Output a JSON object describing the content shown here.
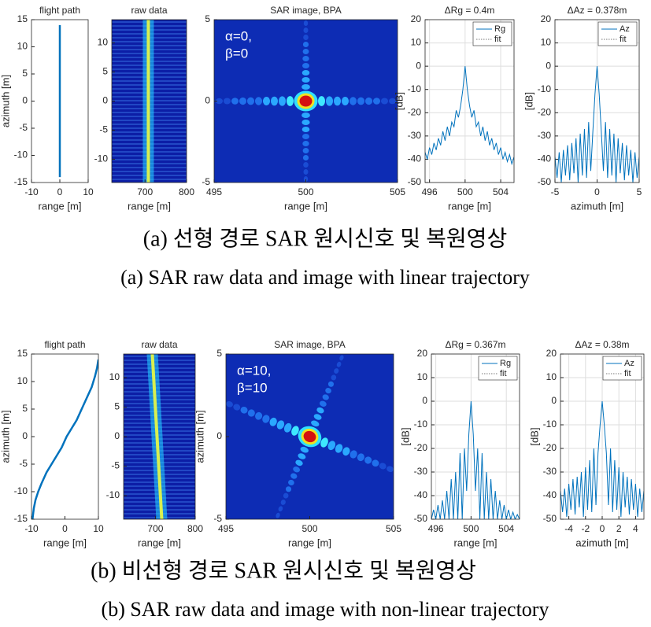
{
  "chart_data": [
    {
      "type": "line",
      "title": "flight path",
      "xlabel": "range [m]",
      "ylabel": "azimuth [m]",
      "xlim": [
        -10,
        10
      ],
      "xticks": [
        -10,
        0,
        10
      ],
      "ylim": [
        -15,
        15
      ],
      "yticks": [
        -15,
        -10,
        -5,
        0,
        5,
        10,
        15
      ],
      "x": [
        0,
        0
      ],
      "series": [
        {
          "color": "#0072bd",
          "values": [
            -14,
            14
          ]
        }
      ]
    },
    {
      "type": "heatmap",
      "title": "raw data",
      "xlabel": "range [m]",
      "xlim": [
        620,
        800
      ],
      "xticks": [
        700,
        800
      ],
      "ylim": [
        -14,
        14
      ],
      "yticks": [
        -10,
        -5,
        0,
        5,
        10
      ]
    },
    {
      "type": "image",
      "title": "SAR image, BPA",
      "xlabel": "range [m]",
      "annotation": [
        "α=0,",
        "β=0"
      ],
      "xlim": [
        495,
        505
      ],
      "xticks": [
        495,
        500,
        505
      ],
      "ylim": [
        -5,
        5
      ],
      "yticks": [
        -5,
        0,
        5
      ]
    },
    {
      "type": "line",
      "title": "ΔRg = 0.4m",
      "xlabel": "range [m]",
      "ylabel": "[dB]",
      "grid": true,
      "xlim": [
        495.5,
        505.5
      ],
      "xticks": [
        496,
        500,
        504
      ],
      "ylim": [
        -50,
        20
      ],
      "yticks": [
        -50,
        -40,
        -30,
        -20,
        -10,
        0,
        10,
        20
      ],
      "legend": [
        {
          "label": "Rg",
          "style": "solid"
        },
        {
          "label": "fit",
          "style": "dotted"
        }
      ],
      "x": [
        495.5,
        495.75,
        496,
        496.25,
        496.5,
        496.75,
        497,
        497.25,
        497.5,
        497.75,
        498,
        498.25,
        498.5,
        498.75,
        499,
        499.25,
        499.5,
        499.75,
        500,
        500.25,
        500.5,
        500.75,
        501,
        501.25,
        501.5,
        501.75,
        502,
        502.25,
        502.5,
        502.75,
        503,
        503.25,
        503.5,
        503.75,
        504,
        504.25,
        504.5,
        504.75,
        505,
        505.25,
        505.5
      ],
      "series": [
        {
          "name": "Rg",
          "color": "#0072bd",
          "values": [
            -37,
            -40,
            -35,
            -38,
            -33,
            -36,
            -31,
            -34,
            -28,
            -32,
            -26,
            -30,
            -24,
            -26,
            -19,
            -22,
            -17,
            -10,
            0,
            -10,
            -17,
            -22,
            -19,
            -26,
            -24,
            -30,
            -26,
            -32,
            -28,
            -34,
            -31,
            -36,
            -33,
            -38,
            -35,
            -40,
            -37,
            -41,
            -38,
            -42,
            -39
          ]
        }
      ]
    },
    {
      "type": "line",
      "title": "ΔAz = 0.378m",
      "xlabel": "azimuth [m]",
      "ylabel": "[dB]",
      "grid": true,
      "xlim": [
        -5,
        5
      ],
      "xticks": [
        -5,
        0,
        5
      ],
      "ylim": [
        -50,
        20
      ],
      "yticks": [
        -50,
        -40,
        -30,
        -20,
        -10,
        0,
        10,
        20
      ],
      "legend": [
        {
          "label": "Az",
          "style": "solid"
        },
        {
          "label": "fit",
          "style": "dotted"
        }
      ],
      "x": [
        -5,
        -4.75,
        -4.5,
        -4.25,
        -4,
        -3.75,
        -3.5,
        -3.25,
        -3,
        -2.75,
        -2.5,
        -2.25,
        -2,
        -1.75,
        -1.5,
        -1.25,
        -1,
        -0.75,
        -0.5,
        -0.25,
        0,
        0.25,
        0.5,
        0.75,
        1,
        1.25,
        1.5,
        1.75,
        2,
        2.25,
        2.5,
        2.75,
        3,
        3.25,
        3.5,
        3.75,
        4,
        4.25,
        4.5,
        4.75,
        5
      ],
      "series": [
        {
          "name": "Az",
          "color": "#0072bd",
          "values": [
            -39,
            -48,
            -37,
            -50,
            -36,
            -47,
            -34,
            -49,
            -33,
            -46,
            -31,
            -50,
            -29,
            -47,
            -27,
            -48,
            -24,
            -45,
            -28,
            -12,
            0,
            -12,
            -28,
            -45,
            -24,
            -48,
            -27,
            -47,
            -29,
            -50,
            -31,
            -46,
            -33,
            -49,
            -34,
            -47,
            -36,
            -50,
            -37,
            -48,
            -39
          ]
        }
      ]
    },
    {
      "type": "line",
      "title": "flight path",
      "xlabel": "range [m]",
      "ylabel": "azimuth [m]",
      "xlim": [
        -10,
        10
      ],
      "xticks": [
        -10,
        0,
        10
      ],
      "ylim": [
        -15,
        15
      ],
      "yticks": [
        -15,
        -10,
        -5,
        0,
        5,
        10,
        15
      ],
      "x": [
        -9.7,
        -9.3,
        -8.8,
        -8,
        -7,
        -5.5,
        -4,
        -2.5,
        -1,
        0.5,
        2,
        3.5,
        5,
        6.5,
        8,
        9,
        9.6,
        10
      ],
      "series": [
        {
          "color": "#0072bd",
          "values": [
            -15,
            -13,
            -11.5,
            -10,
            -8.5,
            -6.5,
            -5,
            -3.5,
            -2,
            0,
            1.5,
            3,
            5,
            7,
            9,
            11,
            12.5,
            14
          ]
        }
      ]
    },
    {
      "type": "heatmap",
      "title": "raw data",
      "xlabel": "range [m]",
      "xlim": [
        620,
        800
      ],
      "xticks": [
        700,
        800
      ],
      "ylim": [
        -14,
        14
      ],
      "yticks": [
        -10,
        -5,
        0,
        5,
        10
      ]
    },
    {
      "type": "image",
      "title": "SAR image, BPA",
      "xlabel": "range [m]",
      "ylabel": "azimuth [m]",
      "annotation": [
        "α=10,",
        "β=10"
      ],
      "xlim": [
        495,
        505
      ],
      "xticks": [
        495,
        500,
        505
      ],
      "ylim": [
        -5,
        5
      ],
      "yticks": [
        -5,
        0,
        5
      ]
    },
    {
      "type": "line",
      "title": "ΔRg = 0.367m",
      "xlabel": "range [m]",
      "ylabel": "[dB]",
      "grid": true,
      "xlim": [
        495.5,
        505.5
      ],
      "xticks": [
        496,
        500,
        504
      ],
      "ylim": [
        -50,
        20
      ],
      "yticks": [
        -50,
        -40,
        -30,
        -20,
        -10,
        0,
        10,
        20
      ],
      "legend": [
        {
          "label": "Rg",
          "style": "solid"
        },
        {
          "label": "fit",
          "style": "dotted"
        }
      ],
      "x": [
        495.5,
        495.75,
        496,
        496.25,
        496.5,
        496.75,
        497,
        497.25,
        497.5,
        497.75,
        498,
        498.25,
        498.5,
        498.75,
        499,
        499.25,
        499.5,
        499.75,
        500,
        500.25,
        500.5,
        500.75,
        501,
        501.25,
        501.5,
        501.75,
        502,
        502.25,
        502.5,
        502.75,
        503,
        503.25,
        503.5,
        503.75,
        504,
        504.25,
        504.5,
        504.75,
        505,
        505.25,
        505.5
      ],
      "series": [
        {
          "name": "Rg",
          "color": "#0072bd",
          "values": [
            -50,
            -46,
            -50,
            -44,
            -50,
            -42,
            -50,
            -38,
            -50,
            -33,
            -50,
            -30,
            -50,
            -22,
            -50,
            -20,
            -38,
            -14,
            0,
            -14,
            -38,
            -20,
            -50,
            -22,
            -50,
            -30,
            -50,
            -33,
            -50,
            -38,
            -50,
            -42,
            -50,
            -44,
            -50,
            -46,
            -50,
            -47,
            -50,
            -48,
            -50
          ]
        }
      ]
    },
    {
      "type": "line",
      "title": "ΔAz = 0.38m",
      "xlabel": "azimuth [m]",
      "ylabel": "[dB]",
      "grid": true,
      "xlim": [
        -5,
        5
      ],
      "xticks": [
        -4,
        -2,
        0,
        2,
        4
      ],
      "ylim": [
        -50,
        20
      ],
      "yticks": [
        -50,
        -40,
        -30,
        -20,
        -10,
        0,
        10,
        20
      ],
      "legend": [
        {
          "label": "Az",
          "style": "solid"
        },
        {
          "label": "fit",
          "style": "dotted"
        }
      ],
      "x": [
        -5,
        -4.75,
        -4.5,
        -4.25,
        -4,
        -3.75,
        -3.5,
        -3.25,
        -3,
        -2.75,
        -2.5,
        -2.25,
        -2,
        -1.75,
        -1.5,
        -1.25,
        -1,
        -0.75,
        -0.5,
        -0.25,
        0,
        0.25,
        0.5,
        0.75,
        1,
        1.25,
        1.5,
        1.75,
        2,
        2.25,
        2.5,
        2.75,
        3,
        3.25,
        3.5,
        3.75,
        4,
        4.25,
        4.5,
        4.75,
        5
      ],
      "series": [
        {
          "name": "Az",
          "color": "#0072bd",
          "values": [
            -38,
            -47,
            -37,
            -49,
            -35,
            -46,
            -33,
            -48,
            -32,
            -45,
            -30,
            -49,
            -28,
            -46,
            -25,
            -47,
            -20,
            -44,
            -22,
            -10,
            0,
            -10,
            -22,
            -44,
            -20,
            -47,
            -25,
            -46,
            -28,
            -49,
            -30,
            -45,
            -32,
            -48,
            -33,
            -46,
            -35,
            -49,
            -37,
            -47,
            -38
          ]
        }
      ]
    }
  ],
  "captions": [
    {
      "korean": "(a) 선형 경로 SAR 원시신호 및 복원영상",
      "english": "(a) SAR raw data and image with linear trajectory"
    },
    {
      "korean": "(b) 비선형 경로 SAR 원시신호 및 복원영상",
      "english": "(b) SAR raw data and image with non-linear trajectory"
    }
  ]
}
